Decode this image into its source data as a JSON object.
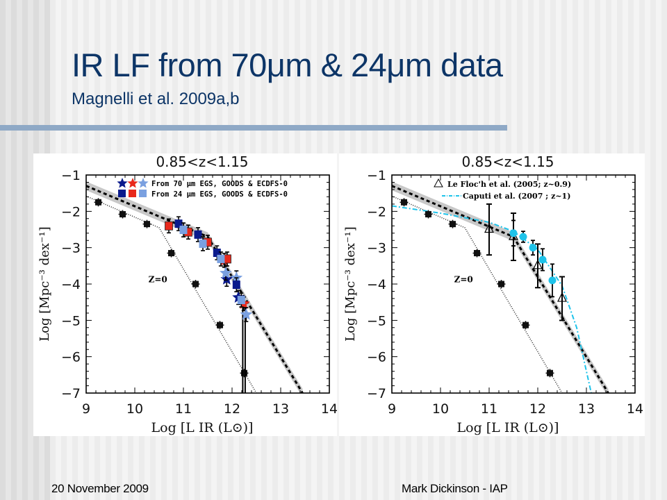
{
  "slide": {
    "title": "IR LF from 70μm & 24μm data",
    "subtitle": "Magnelli et al. 2009a,b",
    "footer_left": "20 November 2009",
    "footer_right": "Mark Dickinson - IAP"
  },
  "colors": {
    "title": "#0d3567",
    "rule": "#8fa9c6",
    "dark_blue": "#0a1a8c",
    "red": "#e8291c",
    "light_blue": "#7aa0e0",
    "cyan": "#1ec3ea",
    "band": "#c8c8c8"
  },
  "chart_data": [
    {
      "type": "scatter",
      "title": "0.85<z<1.15",
      "xlabel": "Log [L IR (L⊙)]",
      "ylabel": "Log [Mpc⁻³ dex⁻¹]",
      "xlim": [
        9,
        14
      ],
      "ylim": [
        -7,
        -1
      ],
      "xticks": [
        "9",
        "10",
        "11",
        "12",
        "13",
        "14"
      ],
      "yticks": [
        "-1",
        "-2",
        "-3",
        "-4",
        "-5",
        "-6",
        "-7"
      ],
      "annotation": "Z=0",
      "legend": {
        "position": "top-right",
        "entries": [
          "From 70 μm EGS, GOODS & ECDFS-0",
          "From 24 μm EGS, GOODS & ECDFS-0"
        ]
      },
      "z0_points": {
        "x": [
          9.25,
          9.75,
          10.25,
          10.75,
          11.25,
          11.75,
          12.25
        ],
        "y": [
          -1.75,
          -2.08,
          -2.35,
          -3.15,
          -4.0,
          -5.13,
          -6.45
        ]
      },
      "z0_curve": {
        "x": [
          9.0,
          10.5,
          12.5
        ],
        "y": [
          -1.58,
          -2.45,
          -7.0
        ]
      },
      "fit_line": {
        "x": [
          9.0,
          11.5,
          13.45
        ],
        "y": [
          -1.3,
          -2.7,
          -7.0
        ],
        "band_halfwidth": 0.12
      },
      "series": [
        {
          "name": "70um EGS",
          "marker": "star",
          "color": "dark_blue",
          "x": [
            11.89,
            12.13
          ],
          "y": [
            -3.87,
            -4.37
          ]
        },
        {
          "name": "70um GOODS",
          "marker": "star",
          "color": "red",
          "x": [
            11.84,
            12.24
          ],
          "y": [
            -3.35,
            -4.54
          ]
        },
        {
          "name": "70um ECDFS-0",
          "marker": "star",
          "color": "light_blue",
          "x": [
            11.87,
            12.09,
            12.29
          ],
          "y": [
            -3.7,
            -3.83,
            -4.84
          ]
        },
        {
          "name": "24um EGS",
          "marker": "square",
          "color": "dark_blue",
          "x": [
            10.9,
            11.3,
            11.69,
            12.09
          ],
          "y": [
            -2.34,
            -2.64,
            -3.14,
            -4.02
          ]
        },
        {
          "name": "24um GOODS",
          "marker": "square",
          "color": "red",
          "x": [
            10.7,
            11.1,
            11.5,
            11.9
          ],
          "y": [
            -2.4,
            -2.57,
            -2.85,
            -3.31
          ]
        },
        {
          "name": "24um ECDFS-0",
          "marker": "square",
          "color": "light_blue",
          "x": [
            11.0,
            11.4,
            11.77,
            12.19
          ],
          "y": [
            -2.51,
            -2.89,
            -3.31,
            -4.44
          ]
        }
      ]
    },
    {
      "type": "scatter",
      "title": "0.85<z<1.15",
      "xlabel": "Log [L IR (L⊙)]",
      "ylabel": "Log [Mpc⁻³ dex⁻¹]",
      "xlim": [
        9,
        14
      ],
      "ylim": [
        -7,
        -1
      ],
      "xticks": [
        "9",
        "10",
        "11",
        "12",
        "13",
        "14"
      ],
      "yticks": [
        "-1",
        "-2",
        "-3",
        "-4",
        "-5",
        "-6",
        "-7"
      ],
      "annotation": "Z=0",
      "legend": {
        "position": "top-right",
        "entries": [
          "Le Floc'h et al. (2005; z~0.9)",
          "Caputi et al. (2007 ; z~1)"
        ]
      },
      "z0_points": {
        "x": [
          9.25,
          9.75,
          10.25,
          10.75,
          11.25,
          11.75,
          12.25
        ],
        "y": [
          -1.75,
          -2.08,
          -2.35,
          -3.15,
          -4.0,
          -5.13,
          -6.45
        ]
      },
      "z0_curve": {
        "x": [
          9.0,
          10.5,
          12.5
        ],
        "y": [
          -1.58,
          -2.45,
          -7.0
        ]
      },
      "fit_line": {
        "x": [
          9.0,
          11.5,
          13.45
        ],
        "y": [
          -1.3,
          -2.7,
          -7.0
        ],
        "band_halfwidth": 0.12
      },
      "lefloch": {
        "x": [
          11.0,
          11.5,
          12.0,
          12.5
        ],
        "y": [
          -2.5,
          -2.7,
          -3.5,
          -4.4
        ],
        "err": [
          0.7,
          0.65,
          0.6,
          0.6
        ]
      },
      "caputi_points": {
        "x": [
          11.5,
          11.7,
          11.9,
          12.1,
          12.3
        ],
        "y": [
          -2.6,
          -2.7,
          -3.0,
          -3.33,
          -3.9
        ],
        "err": [
          0.35,
          0.15,
          0.2,
          0.3,
          0.45
        ]
      },
      "caputi_curve": {
        "x": [
          9.0,
          10.0,
          11.0,
          11.5,
          12.0,
          12.5,
          12.8,
          13.1
        ],
        "y": [
          -1.85,
          -2.05,
          -2.3,
          -2.55,
          -3.05,
          -4.05,
          -5.2,
          -7.0
        ]
      }
    }
  ]
}
